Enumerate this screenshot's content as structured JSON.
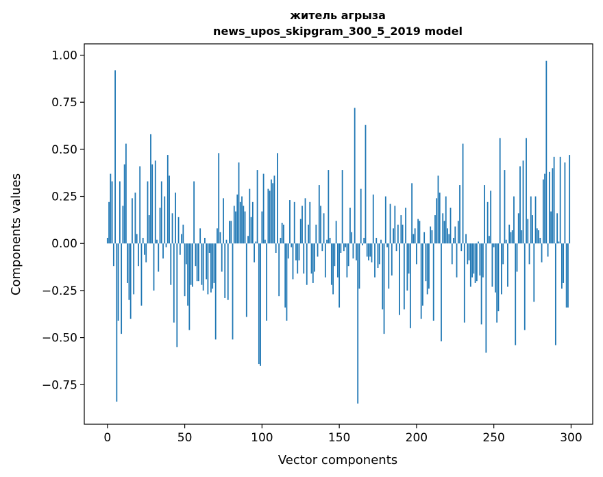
{
  "chart_data": {
    "type": "bar",
    "title": "житель агрыза",
    "subtitle": "news_upos_skipgram_300_5_2019 model",
    "xlabel": "Vector components",
    "ylabel": "Components values",
    "xlim": [
      -15,
      314
    ],
    "ylim": [
      -0.96,
      1.06
    ],
    "xticks": [
      0,
      50,
      100,
      150,
      200,
      250,
      300
    ],
    "xtick_labels": [
      "0",
      "50",
      "100",
      "150",
      "200",
      "250",
      "300"
    ],
    "yticks": [
      1.0,
      0.75,
      0.5,
      0.25,
      0.0,
      -0.25,
      -0.5,
      -0.75
    ],
    "ytick_labels": [
      "1.00",
      "0.75",
      "0.50",
      "0.25",
      "0.00",
      "−0.25",
      "−0.50",
      "−0.75"
    ],
    "grid": false,
    "legend": "none",
    "bar_color": "#1f77b4",
    "x_start": 0,
    "values": [
      0.03,
      0.22,
      0.37,
      0.33,
      -0.12,
      0.92,
      -0.84,
      -0.41,
      0.33,
      -0.48,
      0.2,
      0.42,
      0.53,
      -0.21,
      -0.3,
      -0.4,
      0.24,
      -0.27,
      0.27,
      0.05,
      -0.12,
      0.41,
      -0.33,
      0.03,
      -0.06,
      -0.1,
      0.33,
      0.15,
      0.58,
      0.42,
      -0.25,
      0.44,
      0.02,
      -0.15,
      0.19,
      0.33,
      -0.08,
      0.25,
      -0.02,
      0.47,
      0.36,
      -0.22,
      0.16,
      -0.42,
      0.27,
      -0.55,
      0.14,
      -0.06,
      0.05,
      0.1,
      -0.28,
      -0.11,
      -0.33,
      -0.46,
      -0.22,
      -0.23,
      0.33,
      -0.12,
      -0.2,
      -0.2,
      0.08,
      -0.22,
      -0.25,
      0.03,
      -0.19,
      -0.27,
      -0.05,
      -0.26,
      -0.24,
      -0.21,
      -0.51,
      0.08,
      0.48,
      0.06,
      -0.15,
      0.24,
      -0.29,
      0.02,
      -0.3,
      0.12,
      0.12,
      -0.51,
      0.2,
      0.17,
      0.26,
      0.43,
      0.22,
      0.25,
      0.2,
      0.17,
      -0.39,
      0.04,
      0.29,
      0.14,
      0.22,
      -0.1,
      0.01,
      0.39,
      -0.64,
      -0.65,
      0.17,
      0.37,
      0.02,
      -0.41,
      0.29,
      0.28,
      0.34,
      0.32,
      0.36,
      -0.05,
      0.48,
      -0.28,
      0.03,
      0.11,
      0.1,
      -0.34,
      -0.41,
      -0.08,
      0.23,
      -0.02,
      -0.19,
      0.22,
      -0.09,
      -0.16,
      -0.09,
      0.13,
      0.2,
      -0.16,
      0.24,
      -0.22,
      0.1,
      0.22,
      -0.16,
      -0.21,
      -0.15,
      0.1,
      -0.07,
      0.31,
      0.2,
      -0.04,
      0.16,
      -0.18,
      0.02,
      0.39,
      0.03,
      -0.22,
      -0.27,
      -0.12,
      0.12,
      -0.18,
      -0.34,
      -0.05,
      0.39,
      -0.04,
      -0.02,
      -0.18,
      -0.12,
      0.19,
      0.06,
      -0.08,
      0.72,
      -0.09,
      -0.85,
      -0.24,
      0.29,
      -0.01,
      0.03,
      0.63,
      -0.07,
      -0.09,
      -0.07,
      -0.1,
      0.26,
      -0.18,
      0.03,
      -0.13,
      -0.11,
      0.02,
      -0.35,
      -0.48,
      0.25,
      -0.02,
      -0.24,
      0.21,
      -0.17,
      0.08,
      0.2,
      -0.04,
      0.1,
      -0.38,
      0.15,
      0.1,
      -0.35,
      0.19,
      -0.25,
      -0.16,
      -0.45,
      0.32,
      0.05,
      0.08,
      -0.11,
      0.13,
      0.12,
      -0.4,
      -0.33,
      0.06,
      -0.2,
      -0.27,
      -0.24,
      0.09,
      0.07,
      -0.41,
      0.15,
      0.24,
      0.36,
      0.27,
      -0.52,
      0.16,
      0.12,
      0.25,
      0.08,
      0.05,
      0.19,
      -0.11,
      0.03,
      0.09,
      -0.18,
      0.12,
      0.31,
      -0.04,
      0.53,
      -0.42,
      0.05,
      -0.11,
      -0.09,
      -0.23,
      -0.18,
      -0.16,
      -0.21,
      -0.2,
      0.01,
      -0.17,
      -0.43,
      -0.18,
      0.31,
      -0.58,
      0.22,
      0.04,
      0.28,
      -0.23,
      -0.02,
      -0.26,
      -0.42,
      -0.36,
      0.56,
      -0.27,
      -0.11,
      0.39,
      0.02,
      -0.23,
      0.1,
      0.06,
      0.07,
      0.25,
      -0.54,
      -0.15,
      0.16,
      0.41,
      0.07,
      0.44,
      -0.46,
      0.56,
      0.13,
      -0.11,
      0.25,
      0.15,
      -0.31,
      0.25,
      0.08,
      0.07,
      0.03,
      -0.1,
      0.34,
      0.37,
      0.97,
      -0.07,
      0.38,
      0.17,
      0.4,
      0.46,
      -0.54,
      0.16,
      0.01,
      0.46,
      -0.24,
      -0.21,
      0.43,
      -0.34,
      -0.34,
      0.47
    ]
  }
}
